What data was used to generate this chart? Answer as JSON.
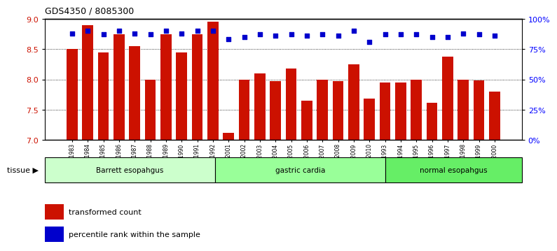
{
  "title": "GDS4350 / 8085300",
  "samples": [
    "GSM851983",
    "GSM851984",
    "GSM851985",
    "GSM851986",
    "GSM851987",
    "GSM851988",
    "GSM851989",
    "GSM851990",
    "GSM851991",
    "GSM851992",
    "GSM852001",
    "GSM852002",
    "GSM852003",
    "GSM852004",
    "GSM852005",
    "GSM852006",
    "GSM852007",
    "GSM852008",
    "GSM852009",
    "GSM852010",
    "GSM851993",
    "GSM851994",
    "GSM851995",
    "GSM851996",
    "GSM851997",
    "GSM851998",
    "GSM851999",
    "GSM852000"
  ],
  "bar_values": [
    8.5,
    8.9,
    8.45,
    8.75,
    8.55,
    8.0,
    8.75,
    8.45,
    8.75,
    8.95,
    7.12,
    8.0,
    8.1,
    7.97,
    8.18,
    7.65,
    8.0,
    7.97,
    8.25,
    7.68,
    7.95,
    7.95,
    8.0,
    7.62,
    8.38,
    8.0,
    7.98,
    7.8
  ],
  "percentile_values": [
    88,
    90,
    87,
    90,
    88,
    87,
    90,
    88,
    90,
    90,
    83,
    85,
    87,
    86,
    87,
    86,
    87,
    86,
    90,
    81,
    87,
    87,
    87,
    85,
    85,
    88,
    87,
    86
  ],
  "groups": [
    {
      "label": "Barrett esopahgus",
      "start": 0,
      "end": 9,
      "color": "#ccffcc"
    },
    {
      "label": "gastric cardia",
      "start": 10,
      "end": 19,
      "color": "#99ff99"
    },
    {
      "label": "normal esopahgus",
      "start": 20,
      "end": 27,
      "color": "#66ee66"
    }
  ],
  "bar_color": "#cc1100",
  "percentile_color": "#0000cc",
  "ylim_left": [
    7.0,
    9.0
  ],
  "ylim_right": [
    0,
    100
  ],
  "yticks_left": [
    7.0,
    7.5,
    8.0,
    8.5,
    9.0
  ],
  "yticks_right": [
    0,
    25,
    50,
    75,
    100
  ],
  "ytick_labels_right": [
    "0%",
    "25%",
    "50%",
    "75%",
    "100%"
  ],
  "grid_lines": [
    7.5,
    8.0,
    8.5
  ],
  "tissue_label": "tissue",
  "legend_bar": "transformed count",
  "legend_dot": "percentile rank within the sample"
}
